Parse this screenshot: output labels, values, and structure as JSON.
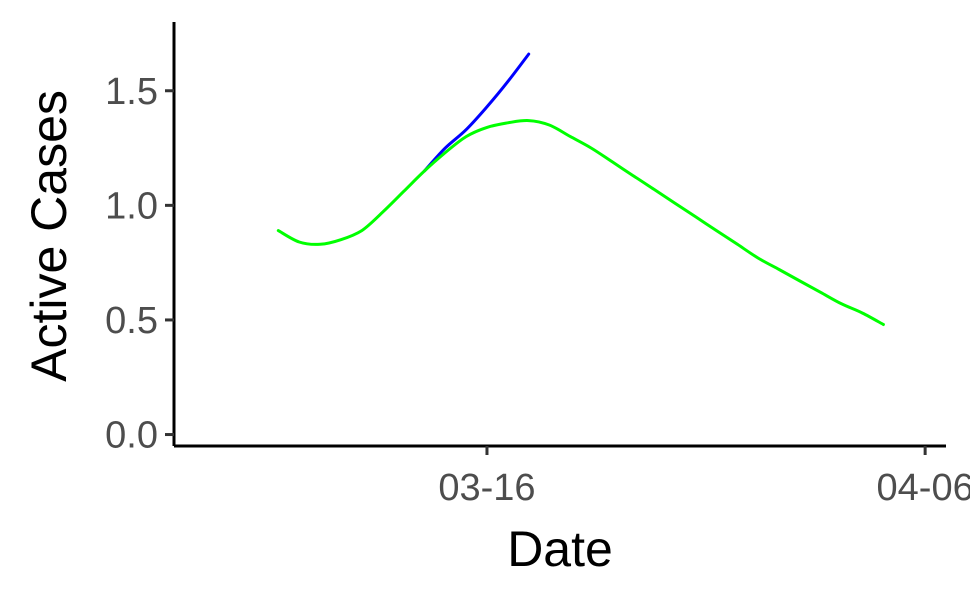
{
  "chart_data": {
    "type": "line",
    "title": "",
    "xlabel": "Date",
    "ylabel": "Active Cases",
    "x_axis": {
      "kind": "date",
      "range": [
        "2020-03-01",
        "2020-04-07"
      ],
      "ticks": [
        {
          "date": "2020-03-16",
          "label": "03-16"
        },
        {
          "date": "2020-04-06",
          "label": "04-06"
        }
      ]
    },
    "y_axis": {
      "range": [
        -0.05,
        1.8
      ],
      "ticks": [
        {
          "value": 0.0,
          "label": "0.0"
        },
        {
          "value": 0.5,
          "label": "0.5"
        },
        {
          "value": 1.0,
          "label": "1.0"
        },
        {
          "value": 1.5,
          "label": "1.5"
        }
      ]
    },
    "grid": false,
    "legend": "none",
    "series": [
      {
        "color": "#0000ff",
        "points": [
          {
            "x": "2020-03-13",
            "y": 1.15
          },
          {
            "x": "2020-03-14",
            "y": 1.25
          },
          {
            "x": "2020-03-15",
            "y": 1.33
          },
          {
            "x": "2020-03-16",
            "y": 1.43
          },
          {
            "x": "2020-03-17",
            "y": 1.54
          },
          {
            "x": "2020-03-18",
            "y": 1.66
          }
        ]
      },
      {
        "color": "#00ff00",
        "points": [
          {
            "x": "2020-03-06",
            "y": 0.89
          },
          {
            "x": "2020-03-07",
            "y": 0.84
          },
          {
            "x": "2020-03-08",
            "y": 0.83
          },
          {
            "x": "2020-03-09",
            "y": 0.85
          },
          {
            "x": "2020-03-10",
            "y": 0.89
          },
          {
            "x": "2020-03-11",
            "y": 0.97
          },
          {
            "x": "2020-03-12",
            "y": 1.06
          },
          {
            "x": "2020-03-13",
            "y": 1.15
          },
          {
            "x": "2020-03-14",
            "y": 1.23
          },
          {
            "x": "2020-03-15",
            "y": 1.3
          },
          {
            "x": "2020-03-16",
            "y": 1.34
          },
          {
            "x": "2020-03-17",
            "y": 1.36
          },
          {
            "x": "2020-03-18",
            "y": 1.37
          },
          {
            "x": "2020-03-19",
            "y": 1.35
          },
          {
            "x": "2020-03-20",
            "y": 1.3
          },
          {
            "x": "2020-03-21",
            "y": 1.25
          },
          {
            "x": "2020-03-22",
            "y": 1.19
          },
          {
            "x": "2020-03-23",
            "y": 1.13
          },
          {
            "x": "2020-03-24",
            "y": 1.07
          },
          {
            "x": "2020-03-25",
            "y": 1.01
          },
          {
            "x": "2020-03-26",
            "y": 0.95
          },
          {
            "x": "2020-03-27",
            "y": 0.89
          },
          {
            "x": "2020-03-28",
            "y": 0.83
          },
          {
            "x": "2020-03-29",
            "y": 0.77
          },
          {
            "x": "2020-03-30",
            "y": 0.72
          },
          {
            "x": "2020-03-31",
            "y": 0.67
          },
          {
            "x": "2020-04-01",
            "y": 0.62
          },
          {
            "x": "2020-04-02",
            "y": 0.57
          },
          {
            "x": "2020-04-03",
            "y": 0.53
          },
          {
            "x": "2020-04-04",
            "y": 0.48
          }
        ]
      }
    ]
  }
}
